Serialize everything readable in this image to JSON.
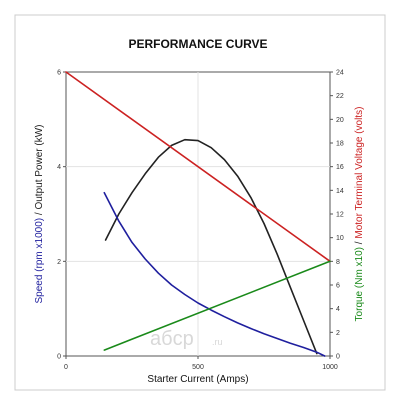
{
  "chart_data": {
    "type": "line",
    "title": "PERFORMANCE CURVE",
    "xlabel": "Starter Current (Amps)",
    "xlim": [
      0,
      1000
    ],
    "xticks": [
      0,
      500,
      1000
    ],
    "left_axis": {
      "label_parts": [
        {
          "text": "Speed (rpm x1000)",
          "color": "#1f1f9e"
        },
        {
          "text": "  /  ",
          "color": "#222222"
        },
        {
          "text": "Output Power (kW)",
          "color": "#222222"
        }
      ],
      "ylim": [
        0,
        6
      ],
      "ticks": [
        0,
        2,
        4,
        6
      ]
    },
    "right_axis": {
      "label_parts": [
        {
          "text": "Torque (Nm x10)",
          "color": "#1a8a1a"
        },
        {
          "text": "  /  ",
          "color": "#222222"
        },
        {
          "text": "Motor Terminal Voltage (volts)",
          "color": "#cc2222"
        }
      ],
      "ylim": [
        0,
        24
      ],
      "ticks": [
        0,
        2,
        4,
        6,
        8,
        10,
        12,
        14,
        16,
        18,
        20,
        22,
        24
      ]
    },
    "series": [
      {
        "axis": "left",
        "color": "#222222",
        "points": [
          [
            150,
            2.45
          ],
          [
            200,
            3.0
          ],
          [
            250,
            3.45
          ],
          [
            300,
            3.85
          ],
          [
            350,
            4.2
          ],
          [
            400,
            4.45
          ],
          [
            450,
            4.57
          ],
          [
            500,
            4.55
          ],
          [
            550,
            4.4
          ],
          [
            600,
            4.15
          ],
          [
            650,
            3.8
          ],
          [
            700,
            3.35
          ],
          [
            750,
            2.8
          ],
          [
            800,
            2.15
          ],
          [
            850,
            1.45
          ],
          [
            900,
            0.75
          ],
          [
            950,
            0.05
          ]
        ]
      },
      {
        "axis": "left",
        "color": "#1f1f9e",
        "points": [
          [
            145,
            3.45
          ],
          [
            200,
            2.85
          ],
          [
            250,
            2.4
          ],
          [
            300,
            2.05
          ],
          [
            350,
            1.75
          ],
          [
            400,
            1.5
          ],
          [
            450,
            1.3
          ],
          [
            500,
            1.12
          ],
          [
            550,
            0.97
          ],
          [
            600,
            0.83
          ],
          [
            650,
            0.7
          ],
          [
            700,
            0.58
          ],
          [
            750,
            0.47
          ],
          [
            800,
            0.37
          ],
          [
            850,
            0.27
          ],
          [
            900,
            0.18
          ],
          [
            950,
            0.08
          ],
          [
            980,
            0.0
          ]
        ]
      },
      {
        "axis": "right",
        "color": "#cc2222",
        "points": [
          [
            0,
            24
          ],
          [
            1000,
            8
          ]
        ]
      },
      {
        "axis": "right",
        "color": "#1a8a1a",
        "points": [
          [
            145,
            0.5
          ],
          [
            1000,
            8
          ]
        ]
      }
    ]
  },
  "watermark": {
    "text": "aбcp",
    "suffix": ".ru"
  }
}
